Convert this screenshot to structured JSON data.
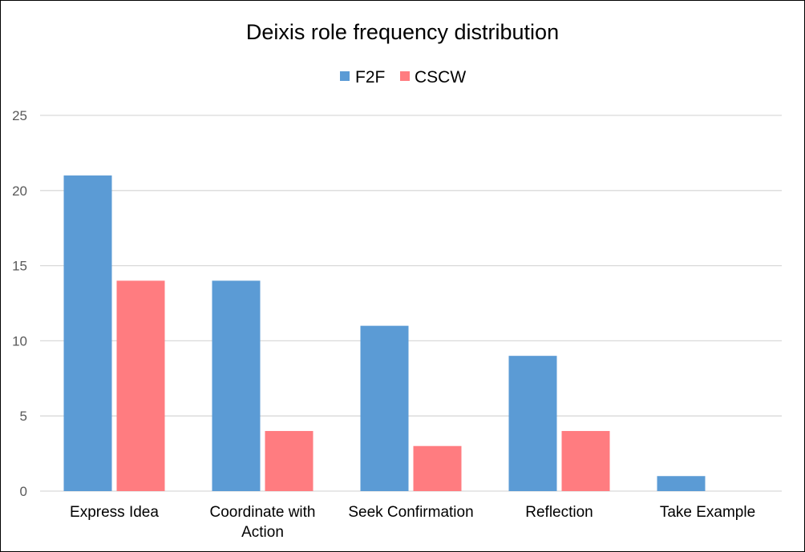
{
  "chart_data": {
    "type": "bar",
    "title": "Deixis role frequency distribution",
    "categories": [
      [
        "Express Idea"
      ],
      [
        "Coordinate with",
        "Action"
      ],
      [
        "Seek Confirmation"
      ],
      [
        "Reflection"
      ],
      [
        "Take Example"
      ]
    ],
    "series": [
      {
        "name": "F2F",
        "values": [
          21,
          14,
          11,
          9,
          1
        ],
        "color": "#5b9bd5"
      },
      {
        "name": "CSCW",
        "values": [
          14,
          4,
          3,
          4,
          0
        ],
        "color": "#ff7c80"
      }
    ],
    "ylim": [
      0,
      25
    ],
    "yticks": [
      0,
      5,
      10,
      15,
      20,
      25
    ],
    "grid": true,
    "gridline_color": "#d9d9d9",
    "legend_position": "top"
  }
}
